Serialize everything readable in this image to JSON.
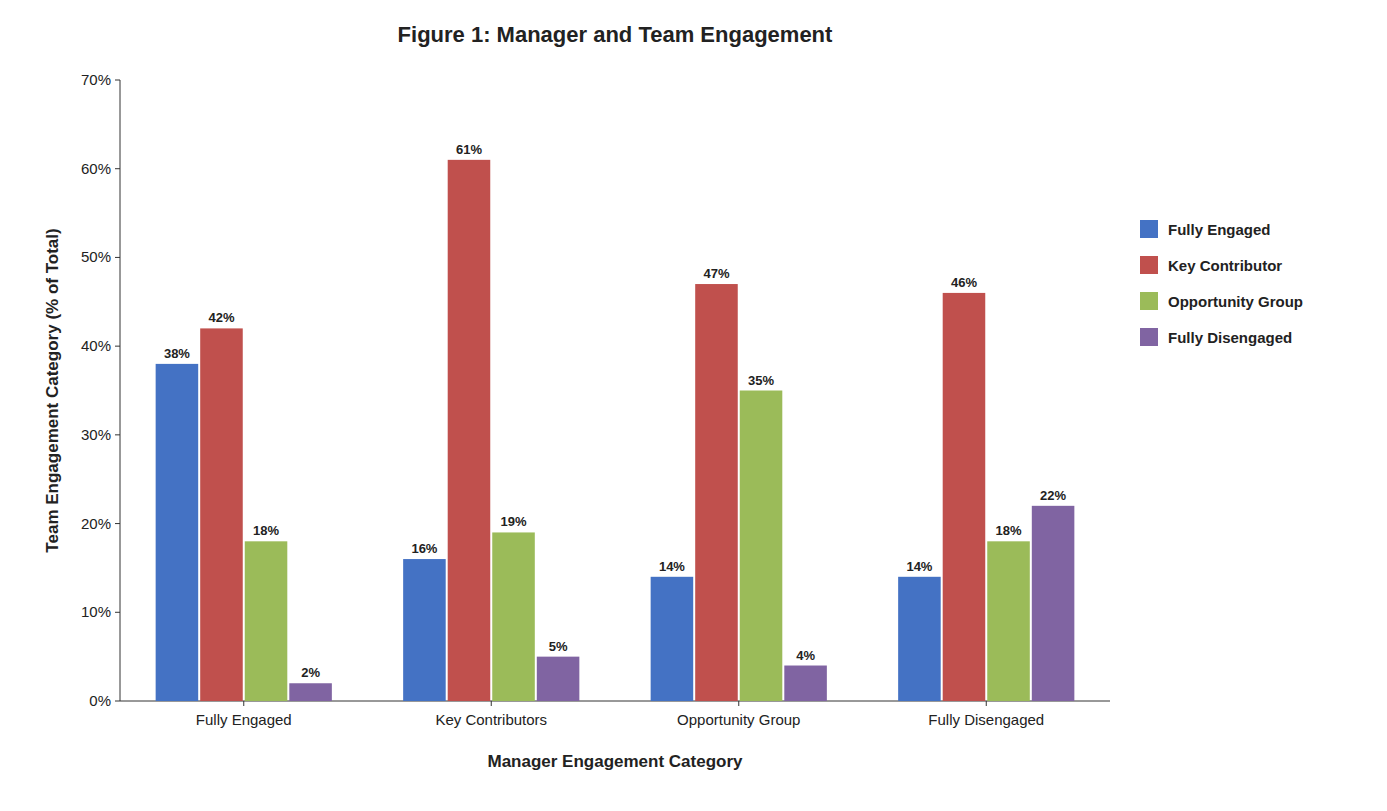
{
  "chart_data": {
    "type": "bar",
    "title": "Figure 1: Manager and Team Engagement",
    "x_label": "Manager Engagement Category",
    "y_label": "Team Engagement Category (% of Total)",
    "categories": [
      "Fully Engaged",
      "Key Contributors",
      "Opportunity Group",
      "Fully Disengaged"
    ],
    "series": [
      {
        "name": "Fully Engaged",
        "color": "#4472c4",
        "values": [
          38,
          16,
          14,
          14
        ],
        "value_labels": [
          "38%",
          "16%",
          "14%",
          "14%"
        ]
      },
      {
        "name": "Key Contributor",
        "color": "#c0504d",
        "values": [
          42,
          61,
          47,
          46
        ],
        "value_labels": [
          "42%",
          "61%",
          "47%",
          "46%"
        ]
      },
      {
        "name": "Opportunity Group",
        "color": "#9bbb59",
        "values": [
          18,
          19,
          35,
          18
        ],
        "value_labels": [
          "18%",
          "19%",
          "35%",
          "18%"
        ]
      },
      {
        "name": "Fully Disengaged",
        "color": "#8064a2",
        "values": [
          2,
          5,
          4,
          22
        ],
        "value_labels": [
          "2%",
          "5%",
          "4%",
          "22%"
        ]
      }
    ],
    "ylim": [
      0,
      70
    ],
    "yticks": [
      {
        "value": 0,
        "label": "0%"
      },
      {
        "value": 10,
        "label": "10%"
      },
      {
        "value": 20,
        "label": "20%"
      },
      {
        "value": 30,
        "label": "30%"
      },
      {
        "value": 40,
        "label": "40%"
      },
      {
        "value": 50,
        "label": "50%"
      },
      {
        "value": 60,
        "label": "60%"
      },
      {
        "value": 70,
        "label": "70%"
      }
    ],
    "grid": false,
    "legend": "right",
    "data_labels": true
  }
}
